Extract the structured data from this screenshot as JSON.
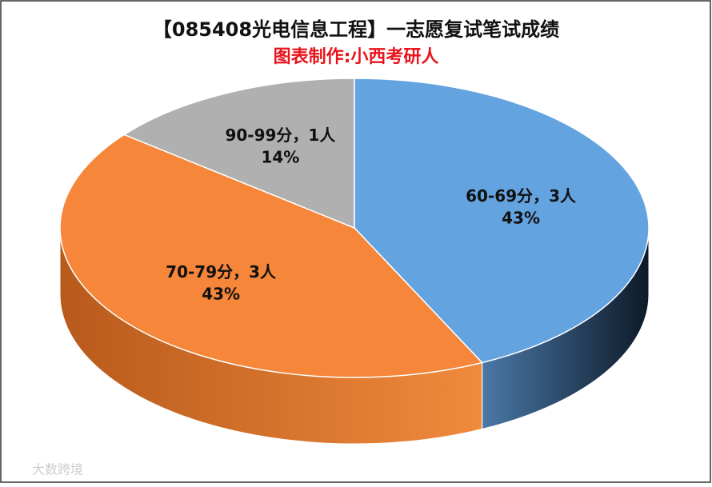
{
  "chart_data": {
    "type": "pie3d",
    "title": "【085408光电信息工程】一志愿复试笔试成绩",
    "subtitle": "图表制作:小西考研人",
    "categories": [
      "60-69分",
      "70-79分",
      "90-99分"
    ],
    "label_separator": "，",
    "values": [
      3,
      3,
      1
    ],
    "value_labels": [
      "3人",
      "3人",
      "1人"
    ],
    "percents": [
      43,
      43,
      14
    ],
    "percent_labels": [
      "43%",
      "43%",
      "14%"
    ],
    "colors": [
      "#63a3e0",
      "#f5863a",
      "#b0b0b0"
    ],
    "side_colors": [
      [
        "#4a78a8",
        "#0d1a28"
      ],
      [
        "#b85a1c",
        "#f08a3c"
      ],
      [
        "#888",
        "#555"
      ]
    ],
    "watermark": "大数跨境"
  }
}
